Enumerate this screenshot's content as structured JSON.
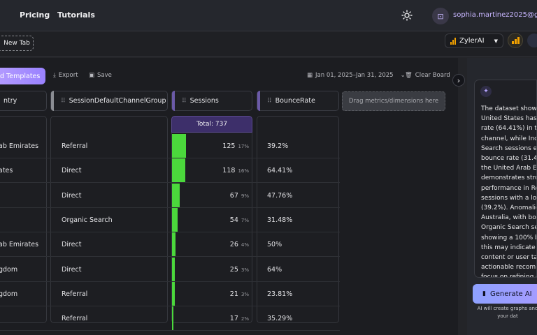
{
  "nav": {
    "pricing": "Pricing",
    "tutorials": "Tutorials"
  },
  "user": {
    "email": "sophia.martinez2025@g",
    "avatar_icon": "robot-icon"
  },
  "tabs": {
    "new_tab": "New Tab"
  },
  "ai_selector": {
    "label": "ZylerAI",
    "icon": "chevron-down-icon"
  },
  "toolbar": {
    "templates": "d Templates",
    "export": "Export",
    "save": "Save",
    "date_range": "Jan 01, 2025–Jan 31, 2025",
    "clear": "Clear Board"
  },
  "columns": [
    {
      "label": "ntry"
    },
    {
      "label": "SessionDefaultChannelGroup"
    },
    {
      "label": "Sessions"
    },
    {
      "label": "BounceRate"
    }
  ],
  "dropzone": "Drag metrics/dimensions here",
  "total": "Total: 737",
  "rows": [
    {
      "country": "ab Emirates",
      "channel": "Referral",
      "sessions": "125",
      "pct": "17%",
      "bounce": "39.2%",
      "fill": 17
    },
    {
      "country": "ates",
      "channel": "Direct",
      "sessions": "118",
      "pct": "16%",
      "bounce": "64.41%",
      "fill": 16
    },
    {
      "country": "",
      "channel": "Direct",
      "sessions": "67",
      "pct": "9%",
      "bounce": "47.76%",
      "fill": 9
    },
    {
      "country": "",
      "channel": "Organic Search",
      "sessions": "54",
      "pct": "7%",
      "bounce": "31.48%",
      "fill": 7
    },
    {
      "country": "ab Emirates",
      "channel": "Direct",
      "sessions": "26",
      "pct": "4%",
      "bounce": "50%",
      "fill": 4
    },
    {
      "country": "gdom",
      "channel": "Direct",
      "sessions": "25",
      "pct": "3%",
      "bounce": "64%",
      "fill": 3
    },
    {
      "country": "gdom",
      "channel": "Referral",
      "sessions": "21",
      "pct": "3%",
      "bounce": "23.81%",
      "fill": 3
    },
    {
      "country": "",
      "channel": "Referral",
      "sessions": "17",
      "pct": "2%",
      "bounce": "35.29%",
      "fill": 2
    }
  ],
  "ai_panel": {
    "text": "The dataset shows t\nUnited States has a\nrate (64.41%) in the D\nchannel, while Indi\nSearch sessions exh\nbounce rate (31.48%\nthe United Arab Emir\ndemonstrates stron\nperformance in Ref\nsessions with a low\n(39.2%). Anomalies i\nAustralia, with both\nOrganic Search ses\nshowing a 100% bou\nthis may indicate iss\ncontent or user targ\nactionable recomm\nfocus on refining co",
    "generate": "Generate AI",
    "note": "AI will create graphs and\nyour dat"
  },
  "colors": {
    "accent": "#9a82ff",
    "bar": "#4bd83c",
    "ai_icon_bg": "#f5a300"
  }
}
